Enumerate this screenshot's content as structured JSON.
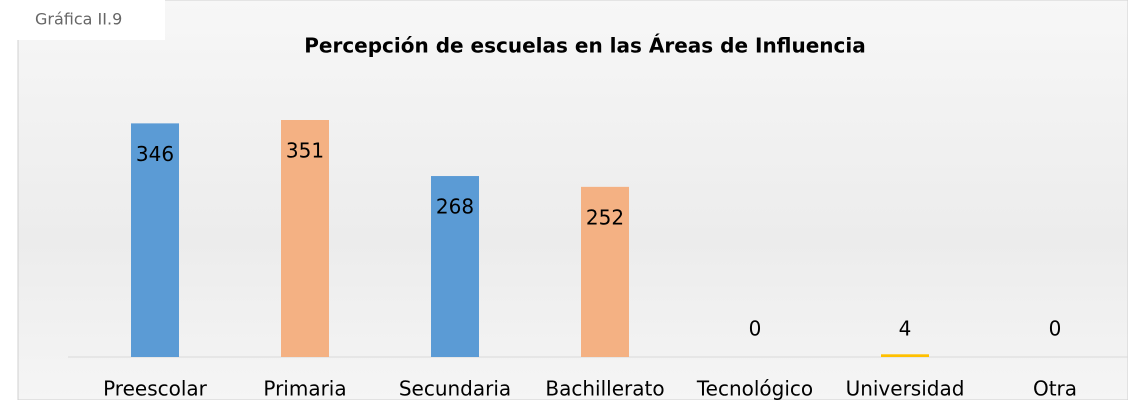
{
  "caption": "Gráfica II.9",
  "chart_data": {
    "type": "bar",
    "title": "Percepción de escuelas en las Áreas de Influencia",
    "categories": [
      "Preescolar",
      "Primaria",
      "Secundaria",
      "Bachillerato",
      "Tecnológico",
      "Universidad",
      "Otra"
    ],
    "values": [
      346,
      351,
      268,
      252,
      0,
      4,
      0
    ],
    "colors": [
      "#5b9bd5",
      "#f4b183",
      "#5b9bd5",
      "#f4b183",
      "#a5a5a5",
      "#ffc000",
      "#4472c4"
    ],
    "grid": false
  }
}
